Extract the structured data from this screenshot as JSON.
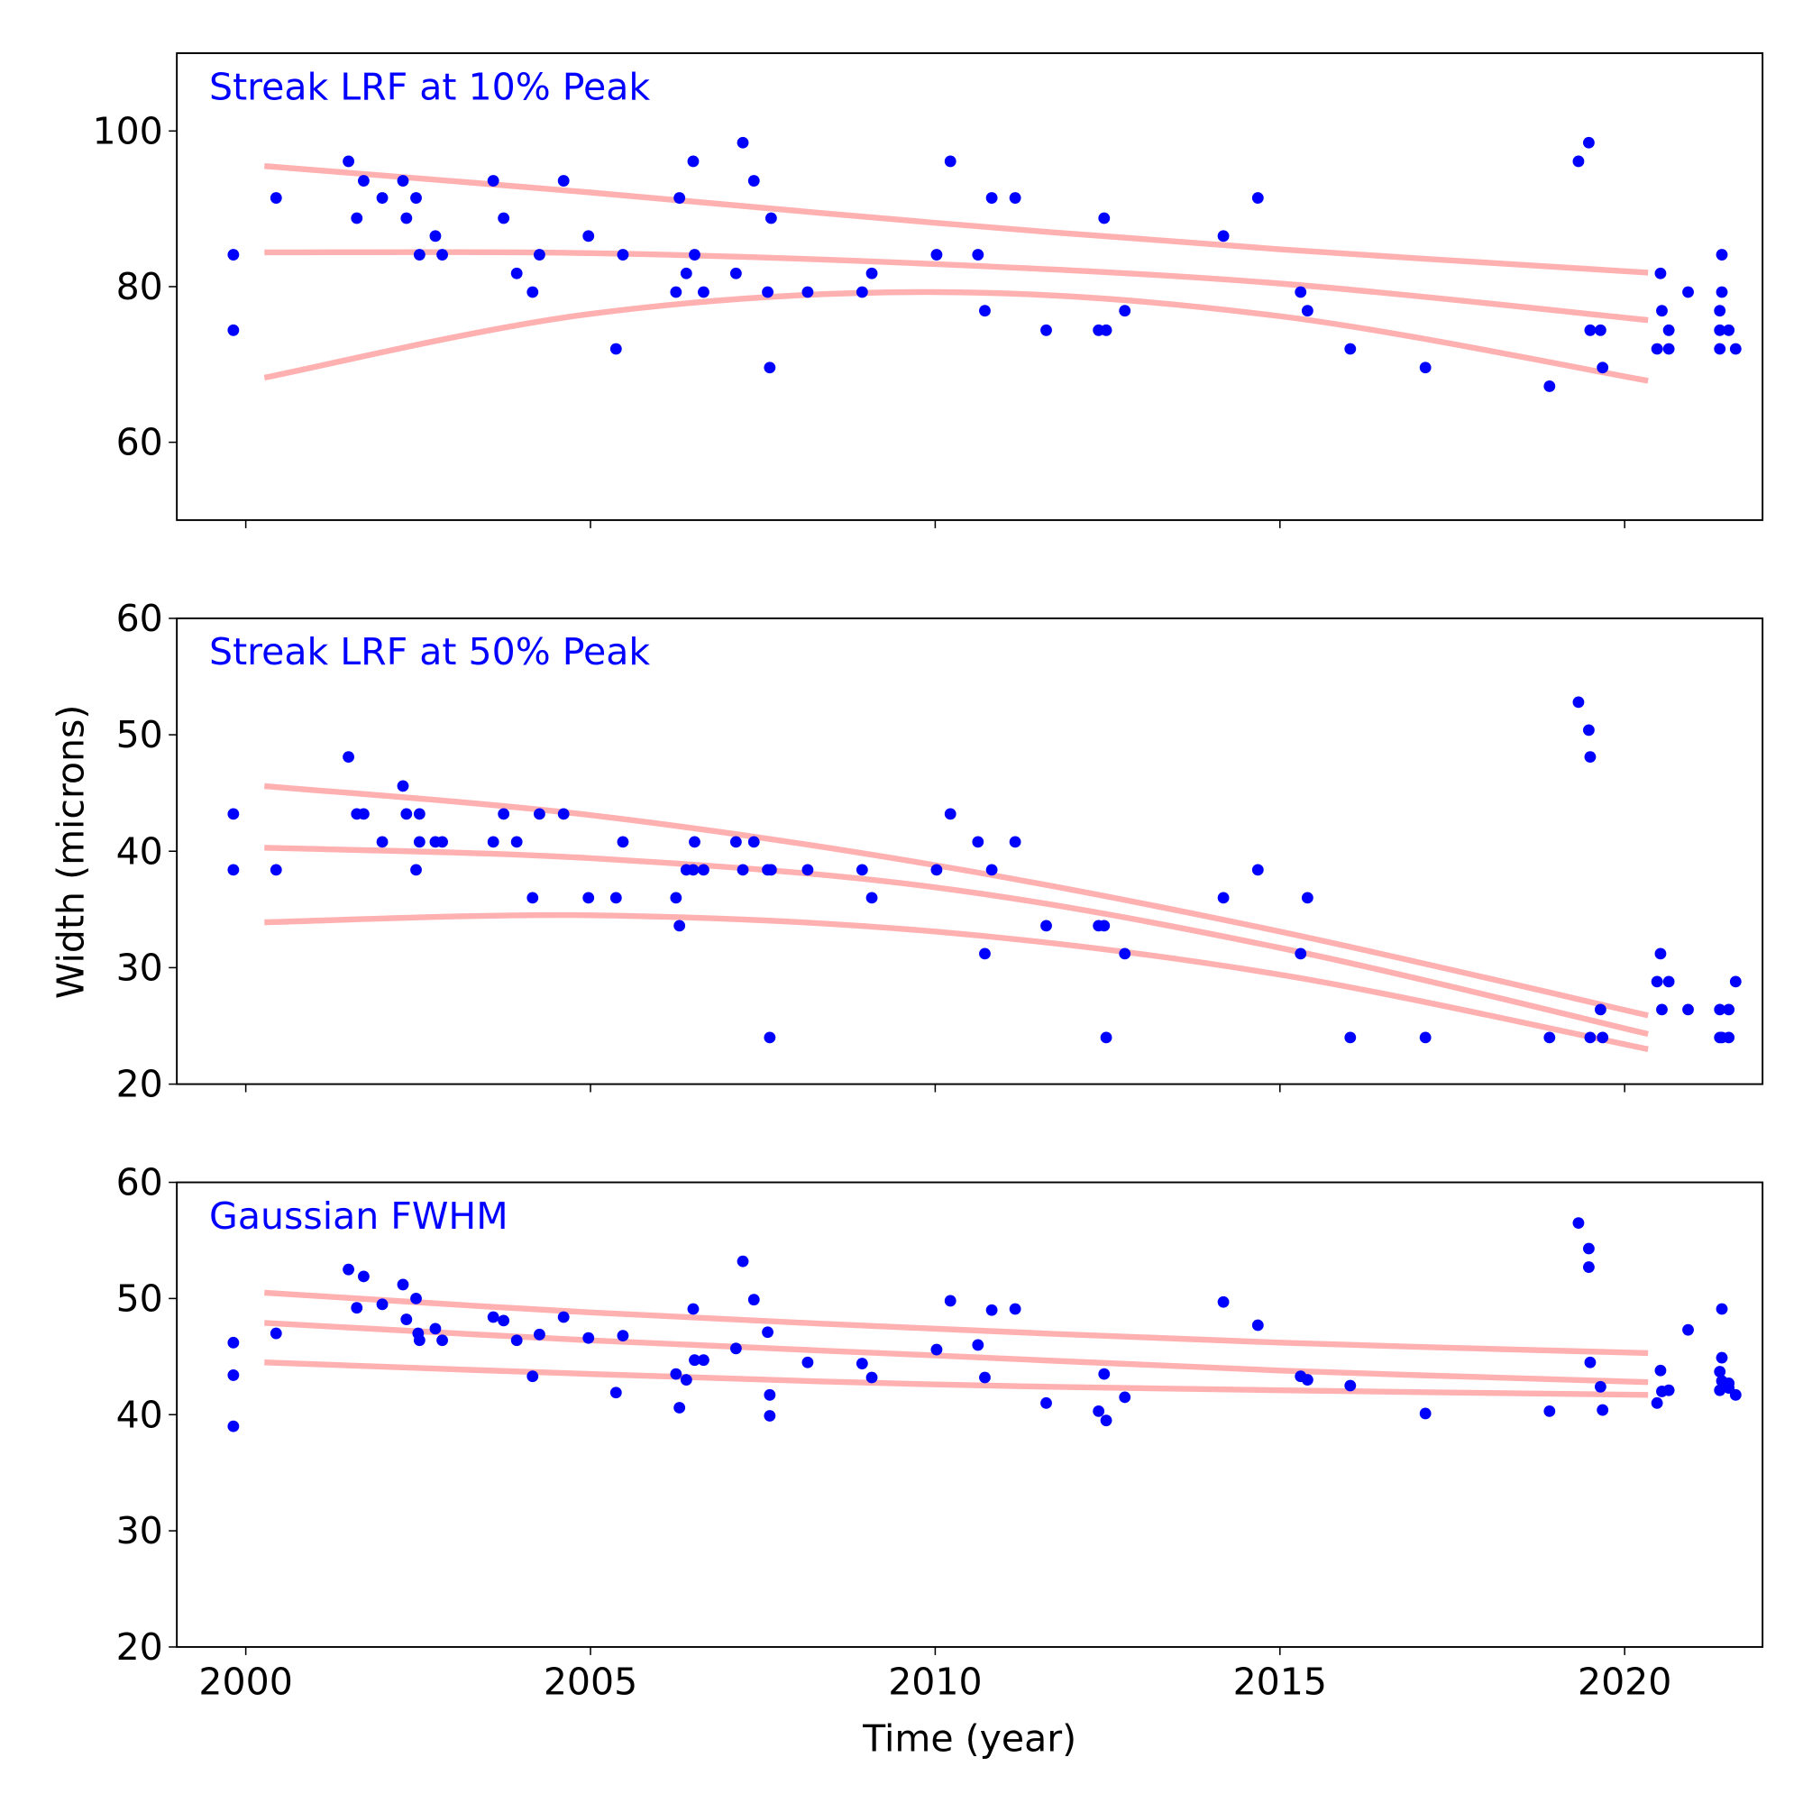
{
  "chart_data": [
    {
      "type": "scatter",
      "title": "Streak LRF at 10% Peak",
      "xlim": [
        1999,
        2022
      ],
      "ylim": [
        50,
        110
      ],
      "yticks": [
        60,
        80,
        100
      ],
      "xticks": [
        2000,
        2005,
        2010,
        2015,
        2020
      ],
      "point_color": "#0000ff",
      "fit_color": "#ffb0b0",
      "points": [
        [
          1999.82,
          84.1
        ],
        [
          1999.82,
          74.4
        ],
        [
          2000.44,
          91.4
        ],
        [
          2001.49,
          96.1
        ],
        [
          2001.61,
          88.8
        ],
        [
          2001.71,
          93.6
        ],
        [
          2001.98,
          91.4
        ],
        [
          2002.28,
          93.6
        ],
        [
          2002.33,
          88.8
        ],
        [
          2002.47,
          91.4
        ],
        [
          2002.52,
          84.1
        ],
        [
          2002.75,
          86.5
        ],
        [
          2002.85,
          84.1
        ],
        [
          2003.59,
          93.6
        ],
        [
          2003.74,
          88.8
        ],
        [
          2003.93,
          81.7
        ],
        [
          2004.16,
          79.3
        ],
        [
          2004.26,
          84.1
        ],
        [
          2004.61,
          93.6
        ],
        [
          2004.97,
          86.5
        ],
        [
          2005.37,
          72.0
        ],
        [
          2005.47,
          84.1
        ],
        [
          2006.24,
          79.3
        ],
        [
          2006.29,
          91.4
        ],
        [
          2006.39,
          81.7
        ],
        [
          2006.49,
          96.1
        ],
        [
          2006.51,
          84.1
        ],
        [
          2006.64,
          79.3
        ],
        [
          2007.11,
          81.7
        ],
        [
          2007.21,
          98.5
        ],
        [
          2007.37,
          93.6
        ],
        [
          2007.57,
          79.3
        ],
        [
          2007.6,
          69.6
        ],
        [
          2007.62,
          88.8
        ],
        [
          2008.15,
          79.3
        ],
        [
          2008.94,
          79.3
        ],
        [
          2009.08,
          81.7
        ],
        [
          2010.02,
          84.1
        ],
        [
          2010.22,
          96.1
        ],
        [
          2010.62,
          84.1
        ],
        [
          2010.72,
          76.9
        ],
        [
          2010.82,
          91.4
        ],
        [
          2011.16,
          91.4
        ],
        [
          2011.61,
          74.4
        ],
        [
          2012.37,
          74.4
        ],
        [
          2012.45,
          88.8
        ],
        [
          2012.48,
          74.4
        ],
        [
          2012.75,
          76.9
        ],
        [
          2014.18,
          86.5
        ],
        [
          2014.68,
          91.4
        ],
        [
          2015.3,
          79.3
        ],
        [
          2015.4,
          76.9
        ],
        [
          2016.02,
          72.0
        ],
        [
          2017.11,
          69.6
        ],
        [
          2018.91,
          67.2
        ],
        [
          2019.33,
          96.1
        ],
        [
          2019.48,
          98.5
        ],
        [
          2019.5,
          74.4
        ],
        [
          2019.65,
          74.4
        ],
        [
          2019.68,
          69.6
        ],
        [
          2020.47,
          72.0
        ],
        [
          2020.52,
          81.7
        ],
        [
          2020.54,
          76.9
        ],
        [
          2020.64,
          74.4
        ],
        [
          2020.64,
          72.0
        ],
        [
          2020.92,
          79.3
        ],
        [
          2021.38,
          76.9
        ],
        [
          2021.38,
          74.4
        ],
        [
          2021.38,
          72.0
        ],
        [
          2021.41,
          84.1
        ],
        [
          2021.41,
          79.3
        ],
        [
          2021.51,
          74.4
        ],
        [
          2021.61,
          72.0
        ]
      ],
      "fits": [
        {
          "x": [
            2000.27,
            2005,
            2010,
            2015,
            2020.34
          ],
          "y": [
            95.5,
            92.1,
            88.2,
            84.8,
            81.8
          ]
        },
        {
          "x": [
            2000.27,
            2005,
            2010,
            2015,
            2020.34
          ],
          "y": [
            84.4,
            84.3,
            82.9,
            80.4,
            75.7
          ]
        },
        {
          "x": [
            2000.27,
            2005,
            2010,
            2015,
            2020.34
          ],
          "y": [
            68.3,
            76.5,
            79.3,
            76.2,
            67.9
          ]
        }
      ]
    },
    {
      "type": "scatter",
      "title": "Streak LRF at 50% Peak",
      "ylabel": "Width (microns)",
      "xlim": [
        1999,
        2022
      ],
      "ylim": [
        20,
        60
      ],
      "yticks": [
        20,
        30,
        40,
        50,
        60
      ],
      "xticks": [
        2000,
        2005,
        2010,
        2015,
        2020
      ],
      "point_color": "#0000ff",
      "fit_color": "#ffb0b0",
      "points": [
        [
          1999.82,
          43.2
        ],
        [
          1999.82,
          38.4
        ],
        [
          2000.44,
          38.4
        ],
        [
          2001.49,
          48.1
        ],
        [
          2001.61,
          43.2
        ],
        [
          2001.71,
          43.2
        ],
        [
          2001.98,
          40.8
        ],
        [
          2002.28,
          45.6
        ],
        [
          2002.33,
          43.2
        ],
        [
          2002.47,
          38.4
        ],
        [
          2002.52,
          43.2
        ],
        [
          2002.52,
          40.8
        ],
        [
          2002.75,
          40.8
        ],
        [
          2002.85,
          40.8
        ],
        [
          2003.59,
          40.8
        ],
        [
          2003.74,
          43.2
        ],
        [
          2003.93,
          40.8
        ],
        [
          2004.16,
          36.0
        ],
        [
          2004.26,
          43.2
        ],
        [
          2004.61,
          43.2
        ],
        [
          2004.97,
          36.0
        ],
        [
          2005.37,
          36.0
        ],
        [
          2005.47,
          40.8
        ],
        [
          2006.24,
          36.0
        ],
        [
          2006.29,
          33.6
        ],
        [
          2006.39,
          38.4
        ],
        [
          2006.49,
          38.4
        ],
        [
          2006.51,
          40.8
        ],
        [
          2006.64,
          38.4
        ],
        [
          2007.11,
          40.8
        ],
        [
          2007.21,
          38.4
        ],
        [
          2007.37,
          40.8
        ],
        [
          2007.57,
          38.4
        ],
        [
          2007.6,
          24.0
        ],
        [
          2007.62,
          38.4
        ],
        [
          2008.15,
          38.4
        ],
        [
          2008.94,
          38.4
        ],
        [
          2009.08,
          36.0
        ],
        [
          2010.02,
          38.4
        ],
        [
          2010.22,
          43.2
        ],
        [
          2010.62,
          40.8
        ],
        [
          2010.72,
          31.2
        ],
        [
          2010.82,
          38.4
        ],
        [
          2011.16,
          40.8
        ],
        [
          2011.61,
          33.6
        ],
        [
          2012.37,
          33.6
        ],
        [
          2012.45,
          33.6
        ],
        [
          2012.48,
          24.0
        ],
        [
          2012.75,
          31.2
        ],
        [
          2014.18,
          36.0
        ],
        [
          2014.68,
          38.4
        ],
        [
          2015.3,
          31.2
        ],
        [
          2015.4,
          36.0
        ],
        [
          2016.02,
          24.0
        ],
        [
          2017.11,
          24.0
        ],
        [
          2018.91,
          24.0
        ],
        [
          2019.33,
          52.8
        ],
        [
          2019.48,
          50.4
        ],
        [
          2019.5,
          48.1
        ],
        [
          2019.5,
          24.0
        ],
        [
          2019.65,
          26.4
        ],
        [
          2019.68,
          24.0
        ],
        [
          2020.47,
          28.8
        ],
        [
          2020.52,
          31.2
        ],
        [
          2020.54,
          26.4
        ],
        [
          2020.64,
          28.8
        ],
        [
          2020.92,
          26.4
        ],
        [
          2021.38,
          26.4
        ],
        [
          2021.38,
          24.0
        ],
        [
          2021.41,
          24.0
        ],
        [
          2021.51,
          26.4
        ],
        [
          2021.51,
          24.0
        ],
        [
          2021.61,
          28.8
        ]
      ],
      "fits": [
        {
          "x": [
            2000.27,
            2005,
            2010,
            2015,
            2020.34
          ],
          "y": [
            45.6,
            43.1,
            38.8,
            33.1,
            25.9
          ]
        },
        {
          "x": [
            2000.27,
            2005,
            2010,
            2015,
            2020.34
          ],
          "y": [
            40.3,
            39.4,
            36.9,
            31.7,
            24.3
          ]
        },
        {
          "x": [
            2000.27,
            2005,
            2010,
            2015,
            2020.34
          ],
          "y": [
            33.9,
            34.5,
            33.1,
            29.4,
            23.0
          ]
        }
      ]
    },
    {
      "type": "scatter",
      "title": "Gaussian FWHM",
      "xlabel": "Time (year)",
      "xlim": [
        1999,
        2022
      ],
      "ylim": [
        20,
        60
      ],
      "yticks": [
        20,
        30,
        40,
        50,
        60
      ],
      "xticks": [
        2000,
        2005,
        2010,
        2015,
        2020
      ],
      "point_color": "#0000ff",
      "fit_color": "#ffb0b0",
      "points": [
        [
          1999.82,
          46.2
        ],
        [
          1999.82,
          43.4
        ],
        [
          1999.82,
          39.0
        ],
        [
          2000.44,
          47.0
        ],
        [
          2001.49,
          52.5
        ],
        [
          2001.61,
          49.2
        ],
        [
          2001.71,
          51.9
        ],
        [
          2001.98,
          49.5
        ],
        [
          2002.28,
          51.2
        ],
        [
          2002.33,
          48.2
        ],
        [
          2002.47,
          50.0
        ],
        [
          2002.5,
          47.0
        ],
        [
          2002.52,
          46.4
        ],
        [
          2002.75,
          47.4
        ],
        [
          2002.85,
          46.4
        ],
        [
          2003.59,
          48.4
        ],
        [
          2003.74,
          48.1
        ],
        [
          2003.93,
          46.4
        ],
        [
          2004.16,
          43.3
        ],
        [
          2004.26,
          46.9
        ],
        [
          2004.61,
          48.4
        ],
        [
          2004.97,
          46.6
        ],
        [
          2005.37,
          41.9
        ],
        [
          2005.47,
          46.8
        ],
        [
          2006.24,
          43.5
        ],
        [
          2006.29,
          40.6
        ],
        [
          2006.39,
          43.0
        ],
        [
          2006.49,
          49.1
        ],
        [
          2006.51,
          44.7
        ],
        [
          2006.64,
          44.7
        ],
        [
          2007.11,
          45.7
        ],
        [
          2007.21,
          53.2
        ],
        [
          2007.37,
          49.9
        ],
        [
          2007.57,
          47.1
        ],
        [
          2007.6,
          39.9
        ],
        [
          2007.6,
          41.7
        ],
        [
          2008.15,
          44.5
        ],
        [
          2008.94,
          44.4
        ],
        [
          2009.08,
          43.2
        ],
        [
          2010.02,
          45.6
        ],
        [
          2010.22,
          49.8
        ],
        [
          2010.62,
          46.0
        ],
        [
          2010.72,
          43.2
        ],
        [
          2010.82,
          49.0
        ],
        [
          2011.16,
          49.1
        ],
        [
          2011.61,
          41.0
        ],
        [
          2012.37,
          40.3
        ],
        [
          2012.45,
          43.5
        ],
        [
          2012.48,
          39.5
        ],
        [
          2012.75,
          41.5
        ],
        [
          2014.18,
          49.7
        ],
        [
          2014.68,
          47.7
        ],
        [
          2015.3,
          43.3
        ],
        [
          2015.4,
          43.0
        ],
        [
          2016.02,
          42.5
        ],
        [
          2017.11,
          40.1
        ],
        [
          2018.91,
          40.3
        ],
        [
          2019.33,
          56.5
        ],
        [
          2019.48,
          54.3
        ],
        [
          2019.48,
          52.7
        ],
        [
          2019.5,
          44.5
        ],
        [
          2019.65,
          42.4
        ],
        [
          2019.68,
          40.4
        ],
        [
          2020.47,
          41.0
        ],
        [
          2020.52,
          43.8
        ],
        [
          2020.54,
          42.0
        ],
        [
          2020.64,
          42.1
        ],
        [
          2020.92,
          47.3
        ],
        [
          2021.38,
          43.7
        ],
        [
          2021.38,
          42.1
        ],
        [
          2021.41,
          49.1
        ],
        [
          2021.41,
          44.9
        ],
        [
          2021.41,
          42.9
        ],
        [
          2021.51,
          42.7
        ],
        [
          2021.51,
          42.3
        ],
        [
          2021.61,
          41.7
        ]
      ],
      "fits": [
        {
          "x": [
            2000.27,
            2005,
            2010,
            2015,
            2020.34
          ],
          "y": [
            50.5,
            48.8,
            47.4,
            46.2,
            45.3
          ]
        },
        {
          "x": [
            2000.27,
            2005,
            2010,
            2015,
            2020.34
          ],
          "y": [
            47.9,
            46.4,
            45.1,
            43.8,
            42.8
          ]
        },
        {
          "x": [
            2000.27,
            2005,
            2010,
            2015,
            2020.34
          ],
          "y": [
            44.5,
            43.5,
            42.6,
            42.1,
            41.7
          ]
        }
      ]
    }
  ]
}
